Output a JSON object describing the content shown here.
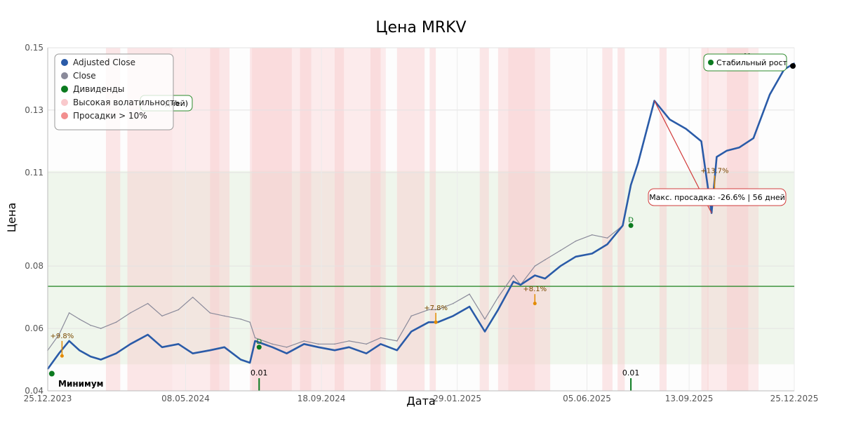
{
  "chart_data": {
    "type": "line",
    "title": "Цена MRKV",
    "xlabel": "Дата",
    "ylabel": "Цена",
    "ylim": [
      0.04,
      0.15
    ],
    "x_ticks": [
      "25.12.2023",
      "08.05.2024",
      "18.09.2024",
      "29.01.2025",
      "05.06.2025",
      "13.09.2025",
      "25.12.2025"
    ],
    "y_ticks": [
      "0.04",
      "0.06",
      "0.08",
      "0.11",
      "0.13",
      "0.15"
    ],
    "grid": true,
    "legend_position": "top-left",
    "legend": [
      "Adjusted Close",
      "Close",
      "Дивиденды",
      "Высокая волатильность",
      "Просадки > 10%"
    ],
    "series": [
      {
        "name": "Adjusted Close",
        "color": "#2a5ba8",
        "x": [
          "2023-12-25",
          "2024-01-05",
          "2024-01-15",
          "2024-01-25",
          "2024-02-05",
          "2024-02-15",
          "2024-03-01",
          "2024-03-15",
          "2024-04-01",
          "2024-04-15",
          "2024-05-01",
          "2024-05-15",
          "2024-06-01",
          "2024-06-15",
          "2024-07-01",
          "2024-07-10",
          "2024-07-15",
          "2024-08-01",
          "2024-08-15",
          "2024-09-01",
          "2024-09-15",
          "2024-10-01",
          "2024-10-15",
          "2024-11-01",
          "2024-11-15",
          "2024-12-01",
          "2024-12-15",
          "2025-01-01",
          "2025-01-10",
          "2025-01-25",
          "2025-02-10",
          "2025-02-25",
          "2025-03-10",
          "2025-03-25",
          "2025-04-01",
          "2025-04-15",
          "2025-04-25",
          "2025-05-10",
          "2025-05-25",
          "2025-06-10",
          "2025-06-25",
          "2025-07-10",
          "2025-07-18",
          "2025-07-25",
          "2025-08-10",
          "2025-08-25",
          "2025-09-10",
          "2025-09-25",
          "2025-10-05",
          "2025-10-10",
          "2025-10-20",
          "2025-11-01",
          "2025-11-15",
          "2025-12-01",
          "2025-12-15",
          "2025-12-25"
        ],
        "values": [
          0.047,
          0.052,
          0.056,
          0.053,
          0.051,
          0.05,
          0.052,
          0.055,
          0.058,
          0.054,
          0.055,
          0.052,
          0.053,
          0.054,
          0.05,
          0.049,
          0.056,
          0.054,
          0.052,
          0.055,
          0.054,
          0.053,
          0.054,
          0.052,
          0.055,
          0.053,
          0.059,
          0.062,
          0.062,
          0.064,
          0.067,
          0.059,
          0.066,
          0.075,
          0.074,
          0.077,
          0.076,
          0.08,
          0.083,
          0.084,
          0.087,
          0.093,
          0.106,
          0.113,
          0.133,
          0.127,
          0.124,
          0.12,
          0.097,
          0.115,
          0.117,
          0.118,
          0.121,
          0.135,
          0.143,
          0.145
        ]
      },
      {
        "name": "Close",
        "color": "#8a8a9a",
        "x": [
          "2023-12-25",
          "2024-01-05",
          "2024-01-15",
          "2024-01-25",
          "2024-02-05",
          "2024-02-15",
          "2024-03-01",
          "2024-03-15",
          "2024-04-01",
          "2024-04-15",
          "2024-05-01",
          "2024-05-15",
          "2024-06-01",
          "2024-06-15",
          "2024-07-01",
          "2024-07-10",
          "2024-07-15",
          "2024-08-01",
          "2024-08-15",
          "2024-09-01",
          "2024-09-15",
          "2024-10-01",
          "2024-10-15",
          "2024-11-01",
          "2024-11-15",
          "2024-12-01",
          "2024-12-15",
          "2025-01-01",
          "2025-01-10",
          "2025-01-25",
          "2025-02-10",
          "2025-02-25",
          "2025-03-10",
          "2025-03-25",
          "2025-04-01",
          "2025-04-15",
          "2025-04-25",
          "2025-05-10",
          "2025-05-25",
          "2025-06-10",
          "2025-06-25",
          "2025-07-10",
          "2025-07-18",
          "2025-07-25",
          "2025-08-10",
          "2025-08-25",
          "2025-09-10",
          "2025-09-25",
          "2025-10-05",
          "2025-10-10",
          "2025-10-20",
          "2025-11-01",
          "2025-11-15",
          "2025-12-01",
          "2025-12-15",
          "2025-12-25"
        ],
        "values": [
          0.053,
          0.058,
          0.065,
          0.063,
          0.061,
          0.06,
          0.062,
          0.065,
          0.068,
          0.064,
          0.066,
          0.07,
          0.065,
          0.064,
          0.063,
          0.062,
          0.057,
          0.055,
          0.054,
          0.056,
          0.055,
          0.055,
          0.056,
          0.055,
          0.057,
          0.056,
          0.064,
          0.066,
          0.066,
          0.068,
          0.071,
          0.063,
          0.07,
          0.077,
          0.074,
          0.08,
          0.082,
          0.085,
          0.088,
          0.09,
          0.089,
          0.093,
          0.106,
          0.113,
          0.133,
          0.127,
          0.124,
          0.12,
          0.097,
          0.115,
          0.117,
          0.118,
          0.121,
          0.135,
          0.143,
          0.145
        ]
      }
    ],
    "reference_line": {
      "value": 0.0735,
      "color": "#2e8b2e"
    },
    "support_band": {
      "from": 0.0485,
      "to": 0.1105
    },
    "dividends": [
      {
        "date": "2024-07-19",
        "value": "0.01",
        "mark": "D"
      },
      {
        "date": "2025-07-18",
        "value": "0.01",
        "mark": "D"
      }
    ],
    "rebounds": [
      {
        "date": "2024-01-08",
        "label": "+9.8%"
      },
      {
        "date": "2025-01-08",
        "label": "+7.8%"
      },
      {
        "date": "2025-04-15",
        "label": "+8.1%"
      },
      {
        "date": "2025-10-08",
        "label": "+13.7%"
      }
    ],
    "annotations": {
      "min_label": "Минимум",
      "max_label": "Максимум",
      "drawdown_label": "Макс. просадка: -26.6% | 56 дней",
      "stable_growth_label": "Стабильный рост",
      "hidden_box_label": "дней)"
    },
    "colors": {
      "adjusted": "#2a5ba8",
      "close": "#8a8a9a",
      "dividends": "#0b7a1f",
      "volatility": "#f9c9cc",
      "drawdown": "#f28e8e",
      "support": "#e4f0de",
      "rebound": "#e38b00",
      "drawdown_line": "#d23c3c"
    }
  }
}
